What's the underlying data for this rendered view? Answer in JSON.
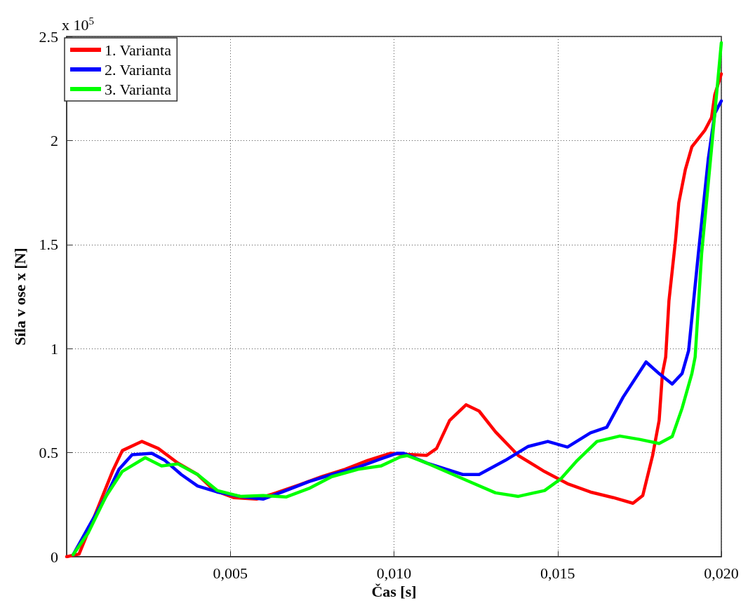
{
  "chart_data": {
    "type": "line",
    "xlabel": "Čas [s]",
    "ylabel": "Síla v ose x [N]",
    "annotations": [
      "x 10$^{5}$"
    ],
    "xlim": [
      0,
      0.02
    ],
    "xticks": [
      {
        "value": 0.005,
        "label": "0,005"
      },
      {
        "value": 0.01,
        "label": "0,010"
      },
      {
        "value": 0.015,
        "label": "0,015"
      },
      {
        "value": 0.02,
        "label": "0,020"
      }
    ],
    "ylim": [
      0,
      2.5
    ],
    "yticks": [
      0,
      0.5,
      1,
      1.5,
      2,
      2.5
    ],
    "grid": true,
    "legend": "top left",
    "marker": "none",
    "line_style": "solid",
    "series": [
      {
        "name": "1. Varianta",
        "color": "#ff0000",
        "x": [
          0,
          0.00038,
          0.00088,
          0.0014,
          0.0017,
          0.0023,
          0.0028,
          0.0034,
          0.004,
          0.0045,
          0.0051,
          0.0058,
          0.0064,
          0.0071,
          0.0078,
          0.0085,
          0.0092,
          0.0099,
          0.0103,
          0.011,
          0.0113,
          0.0117,
          0.0122,
          0.0126,
          0.0131,
          0.0138,
          0.0146,
          0.0153,
          0.016,
          0.0167,
          0.0173,
          0.0176,
          0.0179,
          0.0181,
          0.0182,
          0.0183,
          0.0184,
          0.0186,
          0.0187,
          0.0189,
          0.0191,
          0.0195,
          0.0197,
          0.0198,
          0.02
        ],
        "values": [
          0,
          0.013,
          0.206,
          0.41,
          0.51,
          0.554,
          0.52,
          0.45,
          0.395,
          0.32,
          0.284,
          0.277,
          0.307,
          0.345,
          0.385,
          0.42,
          0.463,
          0.497,
          0.493,
          0.487,
          0.52,
          0.655,
          0.73,
          0.7,
          0.6,
          0.486,
          0.409,
          0.351,
          0.311,
          0.284,
          0.257,
          0.294,
          0.486,
          0.655,
          0.88,
          0.96,
          1.23,
          1.52,
          1.7,
          1.86,
          1.97,
          2.05,
          2.11,
          2.22,
          2.32
        ]
      },
      {
        "name": "2. Varianta",
        "color": "#0000ff",
        "x": [
          0.0002,
          0.00066,
          0.0012,
          0.0016,
          0.002,
          0.0026,
          0.003,
          0.0035,
          0.004,
          0.0046,
          0.0053,
          0.006,
          0.0067,
          0.0074,
          0.0081,
          0.0089,
          0.0096,
          0.0101,
          0.0103,
          0.011,
          0.0121,
          0.0126,
          0.0134,
          0.0141,
          0.0147,
          0.0153,
          0.016,
          0.0165,
          0.017,
          0.0177,
          0.0181,
          0.0185,
          0.0188,
          0.019,
          0.0193,
          0.0196,
          0.0198,
          0.02
        ],
        "values": [
          0.01,
          0.14,
          0.29,
          0.42,
          0.49,
          0.497,
          0.463,
          0.395,
          0.34,
          0.311,
          0.29,
          0.277,
          0.318,
          0.361,
          0.395,
          0.43,
          0.47,
          0.497,
          0.497,
          0.45,
          0.395,
          0.395,
          0.463,
          0.53,
          0.554,
          0.527,
          0.595,
          0.622,
          0.767,
          0.936,
          0.88,
          0.83,
          0.88,
          0.99,
          1.46,
          1.91,
          2.13,
          2.19
        ]
      },
      {
        "name": "3. Varianta",
        "color": "#00ff00",
        "x": [
          0.0002,
          0.00066,
          0.0012,
          0.0017,
          0.0024,
          0.0029,
          0.0034,
          0.004,
          0.0046,
          0.0053,
          0.006,
          0.0067,
          0.0074,
          0.0081,
          0.0089,
          0.0096,
          0.0102,
          0.0104,
          0.011,
          0.0121,
          0.0131,
          0.0138,
          0.0146,
          0.0151,
          0.0156,
          0.0162,
          0.0169,
          0.0175,
          0.0181,
          0.0185,
          0.0188,
          0.0191,
          0.0192,
          0.0194,
          0.0197,
          0.02
        ],
        "values": [
          0.01,
          0.115,
          0.29,
          0.41,
          0.476,
          0.436,
          0.446,
          0.395,
          0.318,
          0.29,
          0.294,
          0.287,
          0.328,
          0.385,
          0.42,
          0.436,
          0.48,
          0.486,
          0.45,
          0.375,
          0.307,
          0.29,
          0.318,
          0.375,
          0.463,
          0.554,
          0.58,
          0.564,
          0.544,
          0.578,
          0.713,
          0.88,
          0.96,
          1.46,
          1.96,
          2.47
        ]
      }
    ]
  }
}
